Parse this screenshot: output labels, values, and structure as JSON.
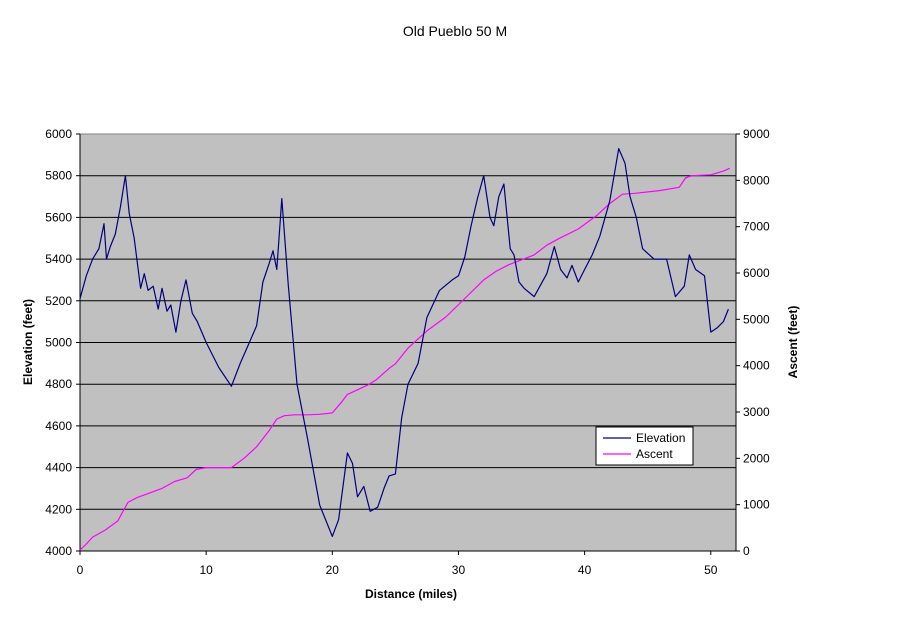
{
  "chart_data": {
    "type": "line",
    "title": "Old Pueblo 50 M",
    "xlabel": "Distance (miles)",
    "ylabel": "Elevation (feet)",
    "y2label": "Ascent (feet)",
    "xlim": [
      0,
      52
    ],
    "ylim": [
      4000,
      6000
    ],
    "y2lim": [
      0,
      9000
    ],
    "xticks": [
      "0",
      "10",
      "20",
      "30",
      "40",
      "50"
    ],
    "yticks": [
      "4000",
      "4200",
      "4400",
      "4600",
      "4800",
      "5000",
      "5200",
      "5400",
      "5600",
      "5800",
      "6000"
    ],
    "y2ticks": [
      "0",
      "1000",
      "2000",
      "3000",
      "4000",
      "5000",
      "6000",
      "7000",
      "8000",
      "9000"
    ],
    "grid": true,
    "background": "#c0c0c0",
    "legend_position": "right",
    "series": [
      {
        "name": "Elevation",
        "axis": "left",
        "color": "#000080",
        "x": [
          0,
          0.5,
          1.0,
          1.5,
          1.9,
          2.1,
          2.4,
          2.8,
          3.2,
          3.6,
          3.9,
          4.3,
          4.8,
          5.1,
          5.4,
          5.8,
          6.2,
          6.5,
          6.9,
          7.2,
          7.6,
          8.0,
          8.4,
          8.9,
          9.3,
          10.0,
          11.0,
          12.0,
          12.7,
          13.5,
          14.0,
          14.5,
          15.0,
          15.3,
          15.6,
          16.0,
          16.5,
          17.2,
          18.0,
          19.0,
          20.0,
          20.5,
          21.2,
          21.6,
          22.0,
          22.5,
          23.0,
          23.6,
          24.1,
          24.5,
          25.0,
          25.5,
          26.0,
          26.8,
          27.5,
          28.5,
          29.5,
          30.0,
          30.5,
          31.0,
          31.5,
          32.0,
          32.5,
          32.8,
          33.2,
          33.6,
          34.1,
          34.4,
          34.8,
          35.2,
          36.0,
          37.0,
          37.6,
          38.1,
          38.6,
          39.0,
          39.5,
          40.0,
          40.6,
          41.2,
          42.0,
          42.7,
          43.2,
          43.6,
          44.1,
          44.6,
          45.5,
          46.5,
          47.2,
          47.9,
          48.3,
          48.8,
          49.5,
          50.0,
          50.5,
          51.0,
          51.4
        ],
        "values": [
          5210,
          5320,
          5400,
          5450,
          5570,
          5400,
          5460,
          5520,
          5650,
          5800,
          5620,
          5500,
          5260,
          5330,
          5250,
          5270,
          5160,
          5260,
          5150,
          5180,
          5050,
          5200,
          5300,
          5140,
          5100,
          5000,
          4880,
          4790,
          4900,
          5010,
          5080,
          5290,
          5380,
          5440,
          5350,
          5690,
          5280,
          4800,
          4550,
          4220,
          4070,
          4150,
          4470,
          4420,
          4260,
          4310,
          4190,
          4210,
          4300,
          4360,
          4370,
          4640,
          4800,
          4900,
          5120,
          5250,
          5300,
          5320,
          5410,
          5560,
          5690,
          5800,
          5600,
          5560,
          5700,
          5760,
          5450,
          5420,
          5290,
          5260,
          5220,
          5330,
          5460,
          5350,
          5310,
          5370,
          5290,
          5350,
          5420,
          5510,
          5680,
          5930,
          5860,
          5700,
          5600,
          5450,
          5400,
          5400,
          5220,
          5270,
          5420,
          5350,
          5320,
          5050,
          5070,
          5100,
          5160
        ]
      },
      {
        "name": "Ascent",
        "axis": "right",
        "color": "#ff00ff",
        "x": [
          0,
          0.5,
          1.0,
          2.0,
          3.0,
          3.8,
          4.5,
          5.5,
          6.5,
          7.5,
          8.5,
          9.2,
          10.0,
          12.0,
          13.0,
          14.0,
          15.0,
          15.6,
          16.2,
          17.0,
          18.0,
          19.0,
          20.0,
          20.7,
          21.2,
          22.0,
          22.8,
          23.5,
          24.5,
          25.0,
          26.0,
          27.5,
          29.0,
          30.5,
          32.0,
          33.0,
          34.0,
          36.0,
          37.0,
          38.0,
          39.5,
          41.0,
          42.0,
          43.0,
          44.0,
          46.0,
          47.5,
          48.0,
          48.5,
          50.0,
          51.0,
          51.5
        ],
        "values": [
          20,
          150,
          300,
          450,
          650,
          1050,
          1150,
          1250,
          1350,
          1500,
          1580,
          1760,
          1800,
          1800,
          2000,
          2250,
          2600,
          2850,
          2920,
          2940,
          2940,
          2950,
          2980,
          3200,
          3380,
          3480,
          3580,
          3700,
          3940,
          4040,
          4380,
          4750,
          5050,
          5450,
          5850,
          6040,
          6180,
          6390,
          6600,
          6750,
          6950,
          7250,
          7500,
          7700,
          7720,
          7780,
          7850,
          8050,
          8100,
          8120,
          8200,
          8260
        ]
      }
    ]
  }
}
